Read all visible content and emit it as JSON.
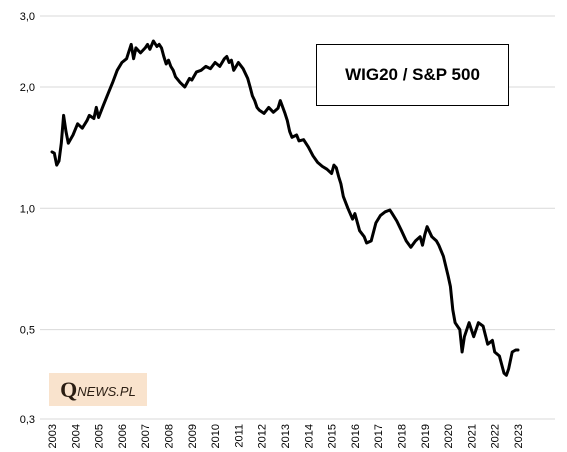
{
  "chart_data": {
    "type": "line",
    "title": "WIG20 / S&P 500",
    "y_scale": "log",
    "ylim": [
      0.3,
      3.0
    ],
    "y_ticks": [
      {
        "value": 3.0,
        "label": "3,0"
      },
      {
        "value": 2.0,
        "label": "2,0"
      },
      {
        "value": 1.0,
        "label": "1,0"
      },
      {
        "value": 0.5,
        "label": "0,5"
      },
      {
        "value": 0.3,
        "label": "0,3"
      }
    ],
    "xlim": [
      2003.0,
      2023.9
    ],
    "x_ticks": [
      "2003",
      "2004",
      "2005",
      "2006",
      "2007",
      "2008",
      "2009",
      "2010",
      "2011",
      "2012",
      "2013",
      "2014",
      "2015",
      "2016",
      "2017",
      "2018",
      "2019",
      "2020",
      "2021",
      "2022",
      "2023"
    ],
    "grid": "horizontal",
    "series": [
      {
        "color": "#000000",
        "points": [
          [
            2003.0,
            1.38
          ],
          [
            2003.1,
            1.37
          ],
          [
            2003.2,
            1.28
          ],
          [
            2003.3,
            1.31
          ],
          [
            2003.4,
            1.45
          ],
          [
            2003.5,
            1.7
          ],
          [
            2003.6,
            1.55
          ],
          [
            2003.7,
            1.45
          ],
          [
            2003.9,
            1.52
          ],
          [
            2004.1,
            1.62
          ],
          [
            2004.3,
            1.58
          ],
          [
            2004.5,
            1.65
          ],
          [
            2004.6,
            1.7
          ],
          [
            2004.8,
            1.67
          ],
          [
            2004.9,
            1.78
          ],
          [
            2005.0,
            1.68
          ],
          [
            2005.2,
            1.8
          ],
          [
            2005.4,
            1.92
          ],
          [
            2005.6,
            2.05
          ],
          [
            2005.8,
            2.2
          ],
          [
            2006.0,
            2.3
          ],
          [
            2006.2,
            2.35
          ],
          [
            2006.3,
            2.45
          ],
          [
            2006.4,
            2.55
          ],
          [
            2006.5,
            2.35
          ],
          [
            2006.6,
            2.5
          ],
          [
            2006.8,
            2.43
          ],
          [
            2007.0,
            2.5
          ],
          [
            2007.1,
            2.55
          ],
          [
            2007.2,
            2.48
          ],
          [
            2007.35,
            2.6
          ],
          [
            2007.5,
            2.52
          ],
          [
            2007.6,
            2.55
          ],
          [
            2007.7,
            2.5
          ],
          [
            2007.8,
            2.38
          ],
          [
            2007.9,
            2.28
          ],
          [
            2008.0,
            2.33
          ],
          [
            2008.1,
            2.25
          ],
          [
            2008.2,
            2.2
          ],
          [
            2008.3,
            2.12
          ],
          [
            2008.5,
            2.05
          ],
          [
            2008.7,
            2.0
          ],
          [
            2008.9,
            2.1
          ],
          [
            2009.0,
            2.08
          ],
          [
            2009.2,
            2.18
          ],
          [
            2009.4,
            2.2
          ],
          [
            2009.6,
            2.25
          ],
          [
            2009.8,
            2.22
          ],
          [
            2010.0,
            2.3
          ],
          [
            2010.2,
            2.25
          ],
          [
            2010.4,
            2.35
          ],
          [
            2010.5,
            2.38
          ],
          [
            2010.6,
            2.3
          ],
          [
            2010.7,
            2.33
          ],
          [
            2010.8,
            2.2
          ],
          [
            2010.9,
            2.25
          ],
          [
            2011.0,
            2.3
          ],
          [
            2011.2,
            2.22
          ],
          [
            2011.4,
            2.1
          ],
          [
            2011.5,
            2.0
          ],
          [
            2011.6,
            1.9
          ],
          [
            2011.7,
            1.85
          ],
          [
            2011.8,
            1.78
          ],
          [
            2011.9,
            1.75
          ],
          [
            2012.1,
            1.72
          ],
          [
            2012.3,
            1.78
          ],
          [
            2012.5,
            1.73
          ],
          [
            2012.7,
            1.77
          ],
          [
            2012.8,
            1.85
          ],
          [
            2013.0,
            1.72
          ],
          [
            2013.1,
            1.65
          ],
          [
            2013.2,
            1.55
          ],
          [
            2013.3,
            1.5
          ],
          [
            2013.5,
            1.52
          ],
          [
            2013.6,
            1.47
          ],
          [
            2013.8,
            1.48
          ],
          [
            2014.0,
            1.42
          ],
          [
            2014.2,
            1.35
          ],
          [
            2014.4,
            1.3
          ],
          [
            2014.6,
            1.27
          ],
          [
            2014.8,
            1.25
          ],
          [
            2015.0,
            1.22
          ],
          [
            2015.1,
            1.28
          ],
          [
            2015.2,
            1.26
          ],
          [
            2015.3,
            1.2
          ],
          [
            2015.4,
            1.15
          ],
          [
            2015.5,
            1.07
          ],
          [
            2015.7,
            1.0
          ],
          [
            2015.9,
            0.94
          ],
          [
            2016.0,
            0.97
          ],
          [
            2016.2,
            0.88
          ],
          [
            2016.4,
            0.85
          ],
          [
            2016.5,
            0.82
          ],
          [
            2016.7,
            0.83
          ],
          [
            2016.9,
            0.92
          ],
          [
            2017.1,
            0.96
          ],
          [
            2017.3,
            0.98
          ],
          [
            2017.5,
            0.99
          ],
          [
            2017.6,
            0.97
          ],
          [
            2017.8,
            0.93
          ],
          [
            2018.0,
            0.88
          ],
          [
            2018.2,
            0.83
          ],
          [
            2018.4,
            0.8
          ],
          [
            2018.6,
            0.83
          ],
          [
            2018.8,
            0.85
          ],
          [
            2018.9,
            0.81
          ],
          [
            2019.0,
            0.86
          ],
          [
            2019.1,
            0.9
          ],
          [
            2019.3,
            0.85
          ],
          [
            2019.5,
            0.83
          ],
          [
            2019.6,
            0.81
          ],
          [
            2019.8,
            0.76
          ],
          [
            2020.0,
            0.68
          ],
          [
            2020.1,
            0.64
          ],
          [
            2020.2,
            0.56
          ],
          [
            2020.3,
            0.52
          ],
          [
            2020.5,
            0.5
          ],
          [
            2020.6,
            0.44
          ],
          [
            2020.7,
            0.48
          ],
          [
            2020.9,
            0.52
          ],
          [
            2021.1,
            0.48
          ],
          [
            2021.3,
            0.52
          ],
          [
            2021.5,
            0.51
          ],
          [
            2021.7,
            0.46
          ],
          [
            2021.9,
            0.47
          ],
          [
            2022.0,
            0.44
          ],
          [
            2022.2,
            0.43
          ],
          [
            2022.4,
            0.39
          ],
          [
            2022.5,
            0.385
          ],
          [
            2022.6,
            0.4
          ],
          [
            2022.75,
            0.44
          ],
          [
            2022.9,
            0.445
          ],
          [
            2023.0,
            0.445
          ]
        ]
      }
    ]
  },
  "logo": {
    "text_q": "Q",
    "text_rest": "NEWS.PL"
  }
}
